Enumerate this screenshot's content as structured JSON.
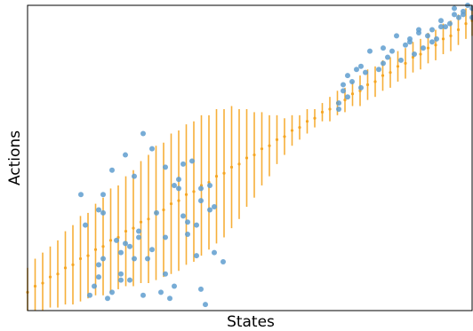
{
  "chart_data": {
    "type": "scatter",
    "title": "",
    "xlabel": "States",
    "ylabel": "Actions",
    "xlim": [
      0,
      1
    ],
    "ylim": [
      0,
      1
    ],
    "grid": false,
    "legend": "none",
    "colors": {
      "points": "#5f9ecf",
      "errorbars": "#f5a623",
      "axes": "#000000"
    },
    "series": [
      {
        "kind": "points",
        "x": [
          0.13,
          0.17,
          0.12,
          0.16,
          0.15,
          0.21,
          0.26,
          0.32,
          0.24,
          0.33,
          0.28,
          0.36,
          0.39,
          0.34,
          0.25,
          0.22,
          0.21,
          0.16,
          0.19,
          0.14,
          0.3,
          0.38,
          0.4,
          0.18,
          0.23,
          0.27,
          0.2,
          0.29,
          0.17,
          0.24,
          0.31,
          0.33,
          0.36,
          0.31,
          0.35,
          0.41,
          0.42,
          0.41,
          0.38,
          0.39,
          0.37,
          0.34,
          0.35,
          0.28,
          0.26,
          0.22,
          0.19,
          0.17,
          0.16,
          0.21,
          0.25,
          0.23,
          0.31,
          0.39,
          0.44,
          0.42,
          0.7,
          0.71,
          0.72,
          0.7,
          0.73,
          0.72,
          0.75,
          0.74,
          0.76,
          0.75,
          0.79,
          0.8,
          0.81,
          0.8,
          0.84,
          0.82,
          0.85,
          0.86,
          0.87,
          0.86,
          0.89,
          0.88,
          0.9,
          0.91,
          0.92,
          0.93,
          0.93,
          0.95,
          0.96,
          0.97,
          0.96,
          0.98,
          0.99,
          1.0,
          1.0,
          0.98,
          0.94,
          0.91,
          0.88,
          0.83,
          0.77,
          0.71
        ],
        "y": [
          0.28,
          0.32,
          0.38,
          0.33,
          0.08,
          0.1,
          0.05,
          0.04,
          0.17,
          0.08,
          0.2,
          0.25,
          0.36,
          0.4,
          0.24,
          0.22,
          0.12,
          0.11,
          0.06,
          0.05,
          0.06,
          0.18,
          0.02,
          0.04,
          0.1,
          0.17,
          0.23,
          0.32,
          0.38,
          0.44,
          0.47,
          0.41,
          0.29,
          0.24,
          0.31,
          0.33,
          0.34,
          0.41,
          0.28,
          0.4,
          0.49,
          0.43,
          0.48,
          0.53,
          0.58,
          0.51,
          0.46,
          0.17,
          0.15,
          0.19,
          0.26,
          0.21,
          0.12,
          0.07,
          0.16,
          0.19,
          0.68,
          0.72,
          0.7,
          0.66,
          0.75,
          0.77,
          0.73,
          0.79,
          0.78,
          0.8,
          0.79,
          0.81,
          0.83,
          0.86,
          0.82,
          0.85,
          0.87,
          0.89,
          0.84,
          0.88,
          0.86,
          0.91,
          0.9,
          0.92,
          0.89,
          0.93,
          0.95,
          0.94,
          0.97,
          0.96,
          0.99,
          0.98,
          1.0,
          0.96,
          0.99,
          0.97,
          0.93,
          0.88,
          0.92,
          0.9,
          0.85,
          0.74
        ]
      },
      {
        "kind": "errorbars",
        "x": [
          0.0,
          0.017,
          0.034,
          0.051,
          0.068,
          0.085,
          0.102,
          0.119,
          0.136,
          0.153,
          0.17,
          0.187,
          0.204,
          0.221,
          0.238,
          0.255,
          0.272,
          0.289,
          0.306,
          0.323,
          0.34,
          0.357,
          0.374,
          0.391,
          0.408,
          0.425,
          0.442,
          0.459,
          0.476,
          0.493,
          0.51,
          0.527,
          0.544,
          0.561,
          0.578,
          0.595,
          0.612,
          0.629,
          0.646,
          0.663,
          0.68,
          0.697,
          0.714,
          0.731,
          0.748,
          0.765,
          0.782,
          0.799,
          0.816,
          0.833,
          0.85,
          0.867,
          0.884,
          0.901,
          0.918,
          0.935,
          0.952,
          0.969,
          0.986,
          1.0
        ],
        "y": [
          0.06,
          0.08,
          0.09,
          0.11,
          0.12,
          0.14,
          0.15,
          0.17,
          0.18,
          0.2,
          0.21,
          0.23,
          0.24,
          0.26,
          0.27,
          0.29,
          0.3,
          0.32,
          0.33,
          0.35,
          0.36,
          0.38,
          0.39,
          0.41,
          0.42,
          0.44,
          0.45,
          0.47,
          0.48,
          0.5,
          0.51,
          0.53,
          0.54,
          0.56,
          0.57,
          0.59,
          0.6,
          0.62,
          0.63,
          0.65,
          0.66,
          0.68,
          0.69,
          0.71,
          0.72,
          0.74,
          0.75,
          0.77,
          0.78,
          0.8,
          0.81,
          0.83,
          0.84,
          0.86,
          0.87,
          0.89,
          0.9,
          0.92,
          0.94,
          0.95
        ],
        "err": [
          0.08,
          0.09,
          0.1,
          0.1,
          0.11,
          0.12,
          0.13,
          0.14,
          0.14,
          0.15,
          0.16,
          0.17,
          0.17,
          0.18,
          0.19,
          0.2,
          0.21,
          0.22,
          0.22,
          0.23,
          0.23,
          0.23,
          0.23,
          0.23,
          0.22,
          0.22,
          0.21,
          0.2,
          0.18,
          0.16,
          0.14,
          0.12,
          0.1,
          0.08,
          0.06,
          0.05,
          0.04,
          0.04,
          0.03,
          0.03,
          0.04,
          0.04,
          0.04,
          0.04,
          0.05,
          0.05,
          0.05,
          0.05,
          0.05,
          0.05,
          0.05,
          0.05,
          0.05,
          0.05,
          0.05,
          0.05,
          0.05,
          0.05,
          0.05,
          0.05
        ]
      }
    ]
  }
}
